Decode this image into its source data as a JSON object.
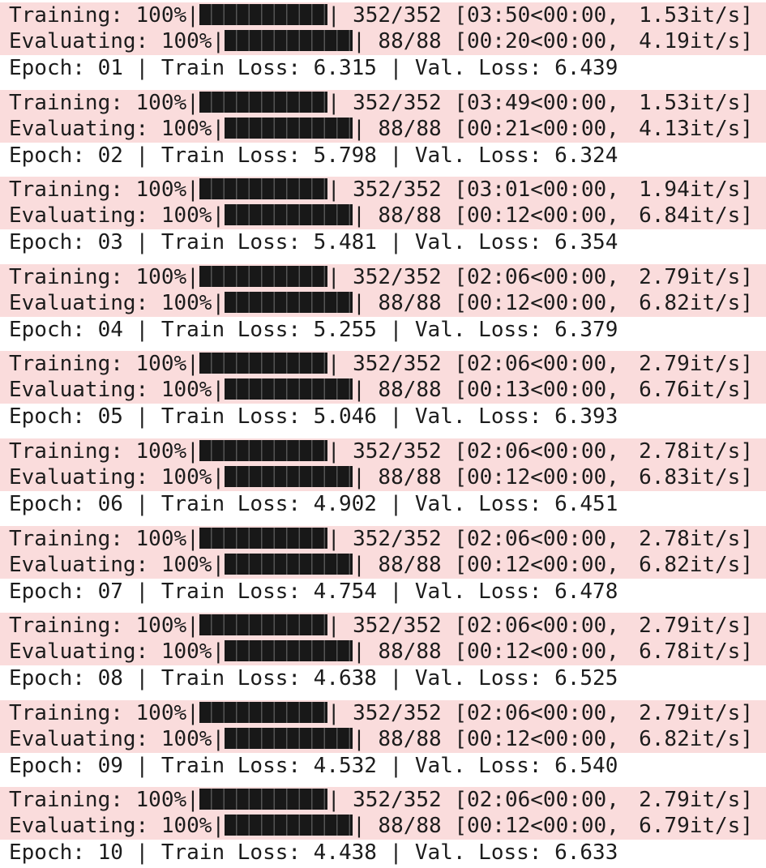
{
  "log": {
    "epochs": [
      {
        "train": {
          "label": "Training: 100%",
          "count": " 352/352 [03:50<00:00,",
          "rate": "1.53it/s]"
        },
        "eval": {
          "label": "Evaluating: 100%",
          "count": " 88/88 [00:20<00:00,",
          "rate": "4.19it/s]"
        },
        "summary": "Epoch: 01 | Train Loss: 6.315 | Val. Loss: 6.439"
      },
      {
        "train": {
          "label": "Training: 100%",
          "count": " 352/352 [03:49<00:00,",
          "rate": "1.53it/s]"
        },
        "eval": {
          "label": "Evaluating: 100%",
          "count": " 88/88 [00:21<00:00,",
          "rate": "4.13it/s]"
        },
        "summary": "Epoch: 02 | Train Loss: 5.798 | Val. Loss: 6.324"
      },
      {
        "train": {
          "label": "Training: 100%",
          "count": " 352/352 [03:01<00:00,",
          "rate": "1.94it/s]"
        },
        "eval": {
          "label": "Evaluating: 100%",
          "count": " 88/88 [00:12<00:00,",
          "rate": "6.84it/s]"
        },
        "summary": "Epoch: 03 | Train Loss: 5.481 | Val. Loss: 6.354"
      },
      {
        "train": {
          "label": "Training: 100%",
          "count": " 352/352 [02:06<00:00,",
          "rate": "2.79it/s]"
        },
        "eval": {
          "label": "Evaluating: 100%",
          "count": " 88/88 [00:12<00:00,",
          "rate": "6.82it/s]"
        },
        "summary": "Epoch: 04 | Train Loss: 5.255 | Val. Loss: 6.379"
      },
      {
        "train": {
          "label": "Training: 100%",
          "count": " 352/352 [02:06<00:00,",
          "rate": "2.79it/s]"
        },
        "eval": {
          "label": "Evaluating: 100%",
          "count": " 88/88 [00:13<00:00,",
          "rate": "6.76it/s]"
        },
        "summary": "Epoch: 05 | Train Loss: 5.046 | Val. Loss: 6.393"
      },
      {
        "train": {
          "label": "Training: 100%",
          "count": " 352/352 [02:06<00:00,",
          "rate": "2.78it/s]"
        },
        "eval": {
          "label": "Evaluating: 100%",
          "count": " 88/88 [00:12<00:00,",
          "rate": "6.83it/s]"
        },
        "summary": "Epoch: 06 | Train Loss: 4.902 | Val. Loss: 6.451"
      },
      {
        "train": {
          "label": "Training: 100%",
          "count": " 352/352 [02:06<00:00,",
          "rate": "2.78it/s]"
        },
        "eval": {
          "label": "Evaluating: 100%",
          "count": " 88/88 [00:12<00:00,",
          "rate": "6.82it/s]"
        },
        "summary": "Epoch: 07 | Train Loss: 4.754 | Val. Loss: 6.478"
      },
      {
        "train": {
          "label": "Training: 100%",
          "count": " 352/352 [02:06<00:00,",
          "rate": "2.79it/s]"
        },
        "eval": {
          "label": "Evaluating: 100%",
          "count": " 88/88 [00:12<00:00,",
          "rate": "6.78it/s]"
        },
        "summary": "Epoch: 08 | Train Loss: 4.638 | Val. Loss: 6.525"
      },
      {
        "train": {
          "label": "Training: 100%",
          "count": " 352/352 [02:06<00:00,",
          "rate": "2.79it/s]"
        },
        "eval": {
          "label": "Evaluating: 100%",
          "count": " 88/88 [00:12<00:00,",
          "rate": "6.82it/s]"
        },
        "summary": "Epoch: 09 | Train Loss: 4.532 | Val. Loss: 6.540"
      },
      {
        "train": {
          "label": "Training: 100%",
          "count": " 352/352 [02:06<00:00,",
          "rate": "2.79it/s]"
        },
        "eval": {
          "label": "Evaluating: 100%",
          "count": " 88/88 [00:12<00:00,",
          "rate": "6.79it/s]"
        },
        "summary": "Epoch: 10 | Train Loss: 4.438 | Val. Loss: 6.633"
      }
    ],
    "progress_fraction": 1.0,
    "colors": {
      "stderr_background": "#fadcdc",
      "bar_fill": "#181818",
      "text": "#1c1c1c"
    }
  }
}
